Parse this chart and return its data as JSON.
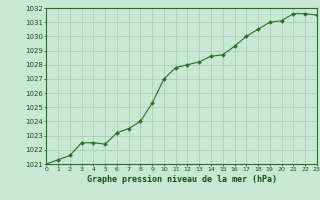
{
  "x": [
    0,
    1,
    2,
    3,
    4,
    5,
    6,
    7,
    8,
    9,
    10,
    11,
    12,
    13,
    14,
    15,
    16,
    17,
    18,
    19,
    20,
    21,
    22,
    23
  ],
  "y": [
    1021.0,
    1021.3,
    1021.6,
    1022.5,
    1022.5,
    1022.4,
    1023.2,
    1023.5,
    1024.0,
    1025.3,
    1027.0,
    1027.8,
    1028.0,
    1028.2,
    1028.6,
    1028.7,
    1029.3,
    1030.0,
    1030.5,
    1031.0,
    1031.1,
    1031.6,
    1031.6,
    1031.5
  ],
  "line_color": "#2d6a2d",
  "marker_color": "#2d6a2d",
  "bg_color": "#c8e8d4",
  "grid_color": "#a8c8b0",
  "axis_label_color": "#1a4a1a",
  "tick_label_color": "#1a4a1a",
  "xlabel": "Graphe pression niveau de la mer (hPa)",
  "ylim_min": 1021,
  "ylim_max": 1032,
  "xlim_min": 0,
  "xlim_max": 23
}
